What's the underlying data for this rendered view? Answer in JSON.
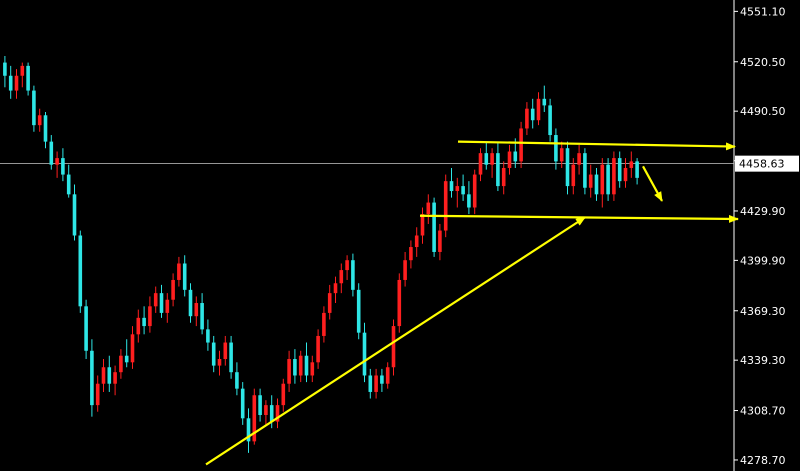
{
  "chart_data": {
    "type": "candlestick",
    "ylim": [
      4272,
      4558
    ],
    "y_ticks": [
      "4551.10",
      "4520.50",
      "4490.50",
      "4460.40",
      "4429.90",
      "4399.90",
      "4369.30",
      "4339.30",
      "4308.70",
      "4278.70"
    ],
    "current_price": "4458.63",
    "grid": false,
    "colors": {
      "background": "#000000",
      "up": "#ff1f1f",
      "down": "#2ee6e6",
      "annotation": "#ffff00",
      "price_line": "#c8c8c8",
      "axis_text": "#ffffff"
    },
    "candles": [
      [
        4520,
        4524,
        4505,
        4512
      ],
      [
        4512,
        4518,
        4498,
        4503
      ],
      [
        4503,
        4516,
        4498,
        4512
      ],
      [
        4512,
        4520,
        4505,
        4518
      ],
      [
        4518,
        4520,
        4500,
        4503
      ],
      [
        4503,
        4506,
        4478,
        4482
      ],
      [
        4482,
        4492,
        4478,
        4488
      ],
      [
        4488,
        4490,
        4468,
        4472
      ],
      [
        4472,
        4476,
        4455,
        4458
      ],
      [
        4458,
        4466,
        4450,
        4462
      ],
      [
        4462,
        4468,
        4448,
        4452
      ],
      [
        4452,
        4458,
        4438,
        4440
      ],
      [
        4440,
        4446,
        4412,
        4415
      ],
      [
        4415,
        4418,
        4368,
        4372
      ],
      [
        4372,
        4376,
        4340,
        4345
      ],
      [
        4345,
        4352,
        4305,
        4312
      ],
      [
        4312,
        4330,
        4308,
        4325
      ],
      [
        4325,
        4340,
        4320,
        4335
      ],
      [
        4335,
        4342,
        4320,
        4325
      ],
      [
        4325,
        4336,
        4318,
        4332
      ],
      [
        4332,
        4346,
        4328,
        4342
      ],
      [
        4342,
        4352,
        4335,
        4338
      ],
      [
        4338,
        4360,
        4334,
        4355
      ],
      [
        4355,
        4370,
        4350,
        4365
      ],
      [
        4365,
        4372,
        4355,
        4360
      ],
      [
        4360,
        4378,
        4356,
        4372
      ],
      [
        4372,
        4384,
        4368,
        4380
      ],
      [
        4380,
        4385,
        4365,
        4368
      ],
      [
        4368,
        4380,
        4362,
        4376
      ],
      [
        4376,
        4392,
        4372,
        4388
      ],
      [
        4388,
        4402,
        4384,
        4398
      ],
      [
        4398,
        4403,
        4378,
        4382
      ],
      [
        4382,
        4386,
        4362,
        4366
      ],
      [
        4366,
        4378,
        4360,
        4374
      ],
      [
        4374,
        4380,
        4355,
        4358
      ],
      [
        4358,
        4364,
        4345,
        4350
      ],
      [
        4350,
        4354,
        4332,
        4336
      ],
      [
        4336,
        4345,
        4330,
        4340
      ],
      [
        4340,
        4354,
        4336,
        4350
      ],
      [
        4350,
        4354,
        4328,
        4332
      ],
      [
        4332,
        4338,
        4318,
        4322
      ],
      [
        4322,
        4326,
        4300,
        4304
      ],
      [
        4304,
        4310,
        4283,
        4290
      ],
      [
        4290,
        4322,
        4288,
        4318
      ],
      [
        4318,
        4322,
        4302,
        4306
      ],
      [
        4306,
        4315,
        4300,
        4312
      ],
      [
        4312,
        4318,
        4298,
        4302
      ],
      [
        4302,
        4316,
        4298,
        4312
      ],
      [
        4312,
        4328,
        4308,
        4325
      ],
      [
        4325,
        4345,
        4320,
        4340
      ],
      [
        4340,
        4346,
        4325,
        4330
      ],
      [
        4330,
        4345,
        4326,
        4342
      ],
      [
        4342,
        4350,
        4326,
        4330
      ],
      [
        4330,
        4342,
        4326,
        4338
      ],
      [
        4338,
        4358,
        4334,
        4354
      ],
      [
        4354,
        4372,
        4350,
        4368
      ],
      [
        4368,
        4385,
        4364,
        4380
      ],
      [
        4380,
        4390,
        4374,
        4386
      ],
      [
        4386,
        4398,
        4380,
        4394
      ],
      [
        4394,
        4403,
        4388,
        4400
      ],
      [
        4400,
        4404,
        4378,
        4382
      ],
      [
        4382,
        4386,
        4352,
        4356
      ],
      [
        4356,
        4362,
        4326,
        4330
      ],
      [
        4330,
        4334,
        4316,
        4320
      ],
      [
        4320,
        4334,
        4316,
        4330
      ],
      [
        4330,
        4334,
        4320,
        4325
      ],
      [
        4325,
        4338,
        4322,
        4335
      ],
      [
        4335,
        4364,
        4330,
        4360
      ],
      [
        4360,
        4392,
        4356,
        4388
      ],
      [
        4388,
        4405,
        4384,
        4400
      ],
      [
        4400,
        4412,
        4395,
        4408
      ],
      [
        4408,
        4420,
        4402,
        4415
      ],
      [
        4415,
        4432,
        4410,
        4428
      ],
      [
        4428,
        4440,
        4422,
        4435
      ],
      [
        4435,
        4438,
        4402,
        4405
      ],
      [
        4405,
        4422,
        4400,
        4418
      ],
      [
        4418,
        4452,
        4414,
        4448
      ],
      [
        4448,
        4456,
        4438,
        4442
      ],
      [
        4442,
        4450,
        4432,
        4445
      ],
      [
        4445,
        4452,
        4436,
        4440
      ],
      [
        4440,
        4448,
        4428,
        4432
      ],
      [
        4432,
        4455,
        4428,
        4452
      ],
      [
        4452,
        4468,
        4448,
        4465
      ],
      [
        4465,
        4472,
        4455,
        4458
      ],
      [
        4458,
        4468,
        4450,
        4465
      ],
      [
        4465,
        4472,
        4442,
        4445
      ],
      [
        4445,
        4460,
        4440,
        4456
      ],
      [
        4456,
        4470,
        4452,
        4466
      ],
      [
        4466,
        4474,
        4456,
        4460
      ],
      [
        4460,
        4484,
        4456,
        4480
      ],
      [
        4480,
        4496,
        4476,
        4492
      ],
      [
        4492,
        4498,
        4480,
        4485
      ],
      [
        4485,
        4502,
        4482,
        4498
      ],
      [
        4498,
        4506,
        4490,
        4494
      ],
      [
        4494,
        4498,
        4472,
        4476
      ],
      [
        4476,
        4480,
        4455,
        4460
      ],
      [
        4460,
        4472,
        4456,
        4468
      ],
      [
        4468,
        4472,
        4440,
        4445
      ],
      [
        4445,
        4462,
        4440,
        4458
      ],
      [
        4458,
        4470,
        4452,
        4465
      ],
      [
        4465,
        4468,
        4440,
        4444
      ],
      [
        4444,
        4458,
        4438,
        4452
      ],
      [
        4452,
        4456,
        4436,
        4440
      ],
      [
        4440,
        4462,
        4432,
        4458
      ],
      [
        4458,
        4462,
        4436,
        4440
      ],
      [
        4440,
        4466,
        4436,
        4462
      ],
      [
        4462,
        4466,
        4444,
        4448
      ],
      [
        4448,
        4462,
        4444,
        4456
      ],
      [
        4456,
        4466,
        4450,
        4460
      ],
      [
        4460,
        4462,
        4446,
        4450
      ]
    ],
    "annotations": [
      {
        "type": "line",
        "from": [
          206,
          4276
        ],
        "to": [
          585,
          4426
        ],
        "arrow": true
      },
      {
        "type": "line",
        "from": [
          458,
          4472
        ],
        "to": [
          735,
          4469
        ],
        "arrow": true
      },
      {
        "type": "line",
        "from": [
          420,
          4427
        ],
        "to": [
          738,
          4425
        ],
        "arrow": true
      },
      {
        "type": "line",
        "from": [
          643,
          4457
        ],
        "to": [
          662,
          4436
        ],
        "arrow": true
      }
    ]
  }
}
